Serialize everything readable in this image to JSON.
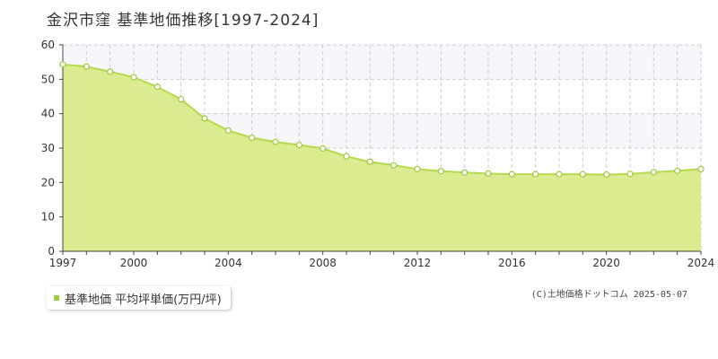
{
  "title": "金沢市窪  基準地価推移[1997-2024]",
  "legend_label": "基準地価 平均坪単価(万円/坪)",
  "copyright": "(C)土地価格ドットコム 2025-05-07",
  "colors": {
    "fill": "#dbeb8f",
    "line": "#b5d94c",
    "marker": "#9bc93a",
    "band": "#f7f6fa",
    "grid": "#cccccc"
  },
  "chart_data": {
    "type": "area",
    "x": [
      1997,
      1998,
      1999,
      2000,
      2001,
      2002,
      2003,
      2004,
      2005,
      2006,
      2007,
      2008,
      2009,
      2010,
      2011,
      2012,
      2013,
      2014,
      2015,
      2016,
      2017,
      2018,
      2019,
      2020,
      2021,
      2022,
      2023,
      2024
    ],
    "series": [
      {
        "name": "基準地価 平均坪単価(万円/坪)",
        "values": [
          54.3,
          53.7,
          52.2,
          50.6,
          47.8,
          44.2,
          38.6,
          35.1,
          33.0,
          31.8,
          30.9,
          29.9,
          27.6,
          26.0,
          25.0,
          23.9,
          23.3,
          22.9,
          22.6,
          22.4,
          22.4,
          22.4,
          22.4,
          22.3,
          22.5,
          23.0,
          23.4,
          23.9
        ]
      }
    ],
    "xlim": [
      1997,
      2024
    ],
    "ylim": [
      0,
      60
    ],
    "yticks": [
      0,
      10,
      20,
      30,
      40,
      50,
      60
    ],
    "xtick_labels": [
      "1997",
      "2000",
      "2004",
      "2008",
      "2012",
      "2016",
      "2020",
      "2024"
    ],
    "grid": true,
    "legend_position": "bottom-left"
  }
}
